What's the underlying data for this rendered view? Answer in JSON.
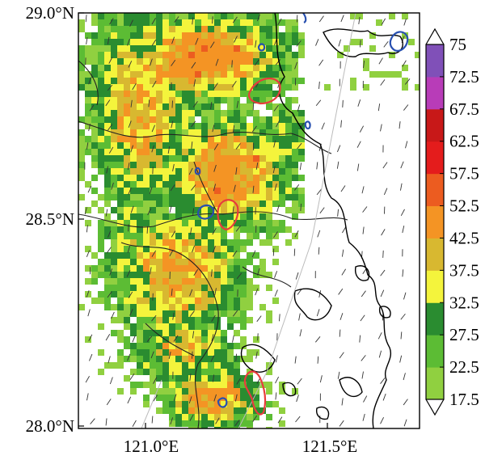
{
  "map": {
    "y_ticks": [
      "29.0°N",
      "28.5°N",
      "28.0°N"
    ],
    "x_ticks": [
      "121.0°E",
      "121.5°E"
    ],
    "lat_range": [
      28.0,
      29.0
    ],
    "lon_range": [
      120.82,
      121.78
    ]
  },
  "colorbar": {
    "levels": [
      "17.5",
      "22.5",
      "27.5",
      "32.5",
      "37.5",
      "42.5",
      "52.5",
      "57.5",
      "62.5",
      "67.5",
      "72.5",
      "75"
    ],
    "colors": [
      "#90d040",
      "#5cbc34",
      "#2a8c30",
      "#f4f43c",
      "#d8b830",
      "#f49424",
      "#ec5c20",
      "#e41c1c",
      "#c81818",
      "#b83cb8",
      "#8050b8"
    ],
    "extend": "both"
  },
  "legend_colors": {
    "coastline": "#000000",
    "contour_red": "#e83c3c",
    "contour_blue": "#2850b0",
    "wind_barb": "#333333"
  }
}
